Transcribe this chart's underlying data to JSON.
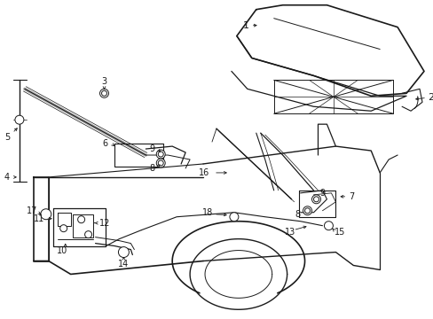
{
  "background_color": "#ffffff",
  "fig_width": 4.89,
  "fig_height": 3.6,
  "dpi": 100,
  "line_color": "#1a1a1a",
  "gray_color": "#888888"
}
